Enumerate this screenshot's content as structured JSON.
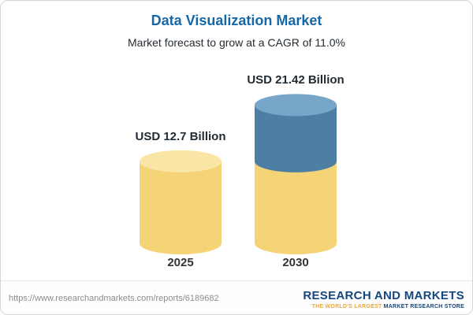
{
  "header": {
    "title": "Data Visualization Market",
    "subtitle": "Market forecast to grow at a CAGR of 11.0%"
  },
  "chart_data": {
    "type": "bar",
    "variant": "3d-cylinder",
    "title": "Data Visualization Market",
    "subtitle": "Market forecast to grow at a CAGR of 11.0%",
    "unit": "USD Billion",
    "cagr_percent": 11.0,
    "categories": [
      "2025",
      "2030"
    ],
    "values": [
      12.7,
      21.42
    ],
    "value_labels": [
      "USD 12.7 Billion",
      "USD 21.42 Billion"
    ],
    "legend": "none",
    "colors": {
      "base": "#f5d377",
      "growth": "#4d7ea4"
    },
    "bars": [
      {
        "category": "2025",
        "value": 12.7,
        "label": "USD 12.7 Billion",
        "cap_color": "#f9e6a6",
        "segments": [
          {
            "name": "base",
            "value": 12.7,
            "color": "#f5d377"
          }
        ]
      },
      {
        "category": "2030",
        "value": 21.42,
        "label": "USD 21.42 Billion",
        "cap_color": "#78a6c8",
        "segments": [
          {
            "name": "base",
            "value": 12.7,
            "color": "#f5d377"
          },
          {
            "name": "growth",
            "value": 8.72,
            "color": "#4d7ea4"
          }
        ]
      }
    ]
  },
  "footer": {
    "url": "https://www.researchandmarkets.com/reports/6189682",
    "logo_text": "RESEARCH AND MARKETS",
    "tagline_highlight": "THE WORLD'S LARGEST",
    "tagline_rest": " MARKET RESEARCH STORE"
  }
}
